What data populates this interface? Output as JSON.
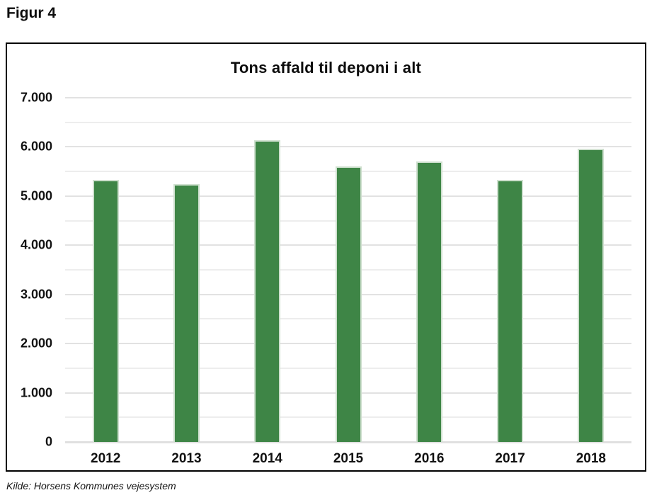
{
  "figure_label": "Figur 4",
  "source_note": "Kilde: Horsens Kommunes vejesystem",
  "chart_data": {
    "type": "bar",
    "title": "Tons affald til deponi i alt",
    "categories": [
      "2012",
      "2013",
      "2014",
      "2015",
      "2016",
      "2017",
      "2018"
    ],
    "values": [
      5330,
      5250,
      6140,
      5610,
      5700,
      5330,
      5970
    ],
    "xlabel": "",
    "ylabel": "",
    "ylim": [
      0,
      7000
    ],
    "y_major_step": 1000,
    "y_minor_step": 500,
    "y_tick_labels": [
      "0",
      "1.000",
      "2.000",
      "3.000",
      "4.000",
      "5.000",
      "6.000",
      "7.000"
    ],
    "grid": true,
    "legend": false,
    "colors": {
      "bar_fill": "#3E8546",
      "bar_edge": "#CFE0CF",
      "grid_major": "#E2E2E2",
      "grid_minor": "#EDEDED",
      "axis_line": "#E0E0E0",
      "text": "#111111",
      "box_border": "#000000"
    }
  }
}
